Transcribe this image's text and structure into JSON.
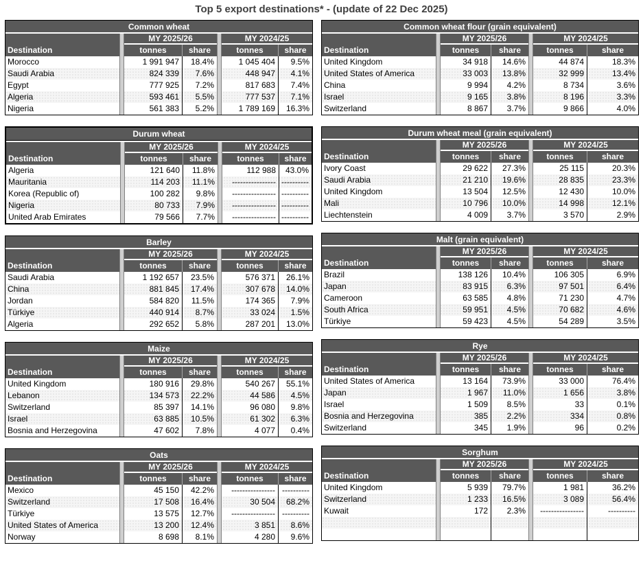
{
  "page_title": "Top 5 export destinations* - (update of 22 Dec 2025)",
  "columns": {
    "destination": "Destination",
    "period_current": "MY 2025/26",
    "period_previous": "MY 2024/25",
    "tonnes": "tonnes",
    "share": "share"
  },
  "colors": {
    "header_bg": "#595959",
    "gap_strip": "#cfcfcf",
    "stripe": "#f5f5f5",
    "border": "#000000",
    "title_text": "#404040"
  },
  "no_data_marker_tonnes": "----------------",
  "no_data_marker_share": "----------",
  "tables": [
    {
      "title": "Common wheat",
      "column": "left",
      "emphasized": false,
      "rows": [
        [
          "Morocco",
          "1 991 947",
          "18.4%",
          "1 045 404",
          "9.5%"
        ],
        [
          "Saudi Arabia",
          "824 339",
          "7.6%",
          "448 947",
          "4.1%"
        ],
        [
          "Egypt",
          "777 925",
          "7.2%",
          "817 683",
          "7.4%"
        ],
        [
          "Algeria",
          "593 461",
          "5.5%",
          "777 537",
          "7.1%"
        ],
        [
          "Nigeria",
          "561 383",
          "5.2%",
          "1 789 169",
          "16.3%"
        ]
      ]
    },
    {
      "title": "Common wheat flour (grain equivalent)",
      "column": "right",
      "emphasized": false,
      "rows": [
        [
          "United Kingdom",
          "34 918",
          "14.6%",
          "44 874",
          "18.3%"
        ],
        [
          "United States of America",
          "33 003",
          "13.8%",
          "32 999",
          "13.4%"
        ],
        [
          "China",
          "9 994",
          "4.2%",
          "8 734",
          "3.6%"
        ],
        [
          "Israel",
          "9 165",
          "3.8%",
          "8 196",
          "3.3%"
        ],
        [
          "Switzerland",
          "8 867",
          "3.7%",
          "9 866",
          "4.0%"
        ]
      ]
    },
    {
      "title": "Durum wheat",
      "column": "left",
      "emphasized": true,
      "rows": [
        [
          "Algeria",
          "121 640",
          "11.8%",
          "112 988",
          "43.0%"
        ],
        [
          "Mauritania",
          "114 203",
          "11.1%",
          "----------------",
          "----------"
        ],
        [
          "Korea (Republic of)",
          "100 282",
          "9.8%",
          "----------------",
          "----------"
        ],
        [
          "Nigeria",
          "80 733",
          "7.9%",
          "----------------",
          "----------"
        ],
        [
          "United Arab Emirates",
          "79 566",
          "7.7%",
          "----------------",
          "----------"
        ]
      ]
    },
    {
      "title": "Durum wheat meal (grain equivalent)",
      "column": "right",
      "emphasized": false,
      "rows": [
        [
          "Ivory Coast",
          "29 622",
          "27.3%",
          "25 115",
          "20.3%"
        ],
        [
          "Saudi Arabia",
          "21 210",
          "19.6%",
          "28 835",
          "23.3%"
        ],
        [
          "United Kingdom",
          "13 504",
          "12.5%",
          "12 430",
          "10.0%"
        ],
        [
          "Mali",
          "10 796",
          "10.0%",
          "14 998",
          "12.1%"
        ],
        [
          "Liechtenstein",
          "4 009",
          "3.7%",
          "3 570",
          "2.9%"
        ]
      ]
    },
    {
      "title": "Barley",
      "column": "left",
      "emphasized": false,
      "rows": [
        [
          "Saudi Arabia",
          "1 192 657",
          "23.5%",
          "576 371",
          "26.1%"
        ],
        [
          "China",
          "881 845",
          "17.4%",
          "307 678",
          "14.0%"
        ],
        [
          "Jordan",
          "584 820",
          "11.5%",
          "174 365",
          "7.9%"
        ],
        [
          "Türkiye",
          "440 914",
          "8.7%",
          "33 024",
          "1.5%"
        ],
        [
          "Algeria",
          "292 652",
          "5.8%",
          "287 201",
          "13.0%"
        ]
      ]
    },
    {
      "title": "Malt (grain equivalent)",
      "column": "right",
      "emphasized": false,
      "rows": [
        [
          "Brazil",
          "138 126",
          "10.4%",
          "106 305",
          "6.9%"
        ],
        [
          "Japan",
          "83 915",
          "6.3%",
          "97 501",
          "6.4%"
        ],
        [
          "Cameroon",
          "63 585",
          "4.8%",
          "71 230",
          "4.7%"
        ],
        [
          "South Africa",
          "59 951",
          "4.5%",
          "70 682",
          "4.6%"
        ],
        [
          "Türkiye",
          "59 423",
          "4.5%",
          "54 289",
          "3.5%"
        ]
      ]
    },
    {
      "title": "Maize",
      "column": "left",
      "emphasized": false,
      "rows": [
        [
          "United Kingdom",
          "180 916",
          "29.8%",
          "540 267",
          "55.1%"
        ],
        [
          "Lebanon",
          "134 573",
          "22.2%",
          "44 586",
          "4.5%"
        ],
        [
          "Switzerland",
          "85 397",
          "14.1%",
          "96 080",
          "9.8%"
        ],
        [
          "Israel",
          "63 885",
          "10.5%",
          "61 302",
          "6.3%"
        ],
        [
          "Bosnia and Herzegovina",
          "47 602",
          "7.8%",
          "4 077",
          "0.4%"
        ]
      ]
    },
    {
      "title": "Rye",
      "column": "right",
      "emphasized": false,
      "rows": [
        [
          "United States of America",
          "13 164",
          "73.9%",
          "33 000",
          "76.4%"
        ],
        [
          "Japan",
          "1 967",
          "11.0%",
          "1 656",
          "3.8%"
        ],
        [
          "Israel",
          "1 509",
          "8.5%",
          "33",
          "0.1%"
        ],
        [
          "Bosnia and Herzegovina",
          "385",
          "2.2%",
          "334",
          "0.8%"
        ],
        [
          "Switzerland",
          "345",
          "1.9%",
          "96",
          "0.2%"
        ]
      ]
    },
    {
      "title": "Oats",
      "column": "left",
      "emphasized": false,
      "rows": [
        [
          "Mexico",
          "45 150",
          "42.2%",
          "----------------",
          "----------"
        ],
        [
          "Switzerland",
          "17 508",
          "16.4%",
          "30 504",
          "68.2%"
        ],
        [
          "Türkiye",
          "13 575",
          "12.7%",
          "----------------",
          "----------"
        ],
        [
          "United States of America",
          "13 200",
          "12.4%",
          "3 851",
          "8.6%"
        ],
        [
          "Norway",
          "8 698",
          "8.1%",
          "4 280",
          "9.6%"
        ]
      ]
    },
    {
      "title": "Sorghum",
      "column": "right",
      "emphasized": false,
      "rows": [
        [
          "United Kingdom",
          "5 939",
          "79.7%",
          "1 981",
          "36.2%"
        ],
        [
          "Switzerland",
          "1 233",
          "16.5%",
          "3 089",
          "56.4%"
        ],
        [
          "Kuwait",
          "172",
          "2.3%",
          "----------------",
          "----------"
        ],
        [
          "",
          "",
          "",
          "",
          ""
        ],
        [
          "",
          "",
          "",
          "",
          ""
        ]
      ]
    }
  ]
}
